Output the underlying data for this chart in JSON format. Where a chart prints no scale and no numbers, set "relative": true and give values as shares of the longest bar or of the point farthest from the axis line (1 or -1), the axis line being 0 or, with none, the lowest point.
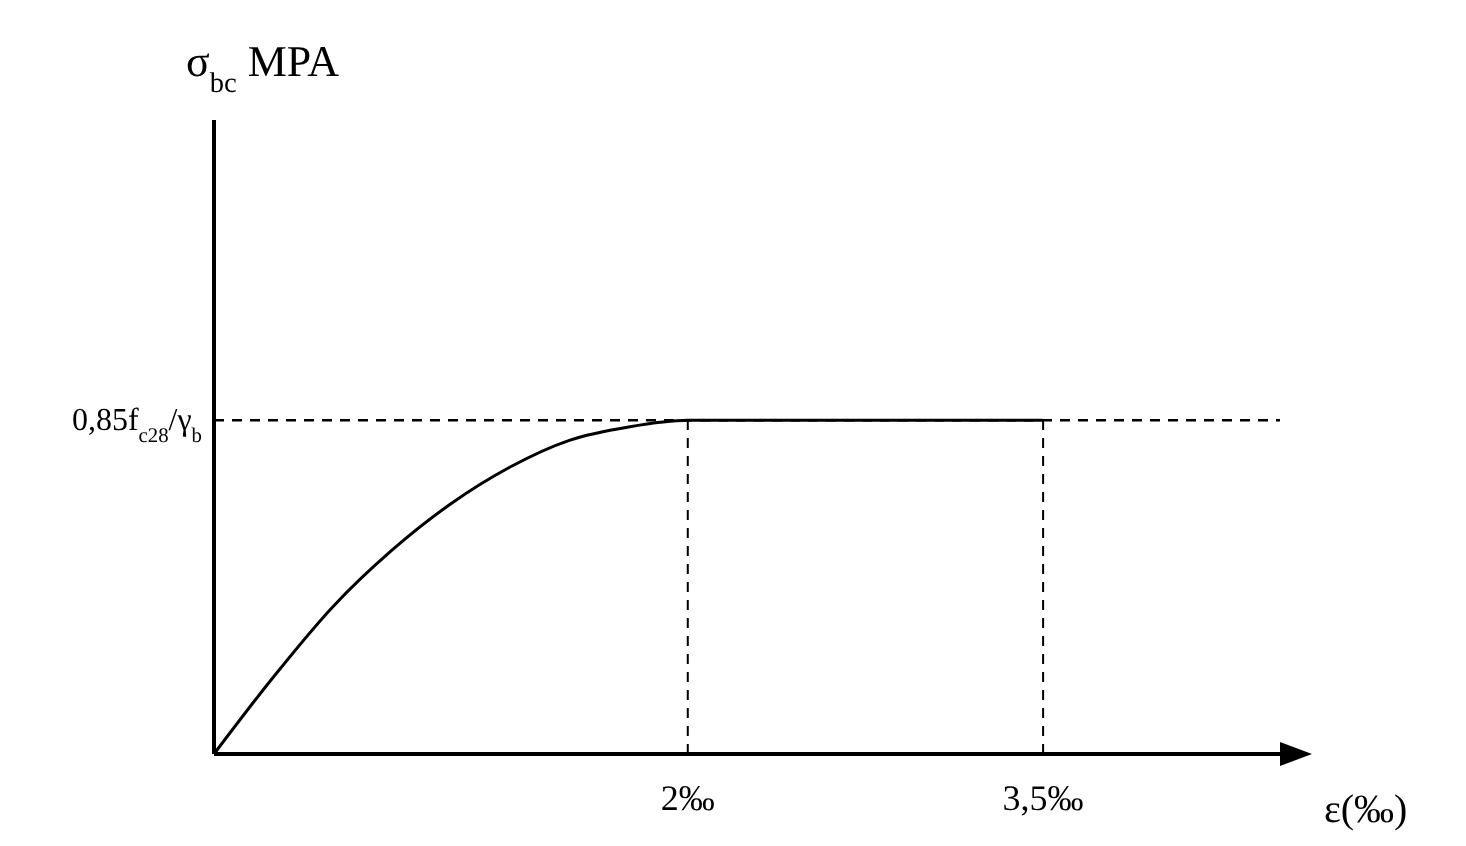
{
  "chart_data": {
    "type": "line",
    "relative": true,
    "xlabel": "ε(‰)",
    "annotations": [
      "σ$_{bc}$ MPA"
    ],
    "x": [
      0,
      0.25,
      0.5,
      0.75,
      1,
      1.25,
      1.5,
      1.75,
      2,
      3.5
    ],
    "xlim": [
      0,
      4.5
    ],
    "xticks": [
      {
        "value": 2,
        "label": "2‰"
      },
      {
        "value": 3.5,
        "label": "3,5‰"
      }
    ],
    "series": [
      {
        "color": "#000000",
        "values": [
          0,
          0.23,
          0.44,
          0.61,
          0.75,
          0.86,
          0.94,
          0.98,
          1,
          1
        ]
      }
    ],
    "marker": "none",
    "line_style": "solid",
    "ref_lines": [
      {
        "axis": "y",
        "value": 1,
        "label": "0,85f$_{c28}$/γ$_{b}$",
        "line_style": "dashed",
        "color": "#000000"
      },
      {
        "axis": "x",
        "value": 2,
        "line_style": "dashed",
        "color": "#000000"
      },
      {
        "axis": "x",
        "value": 3.5,
        "line_style": "dashed",
        "color": "#000000"
      }
    ]
  }
}
